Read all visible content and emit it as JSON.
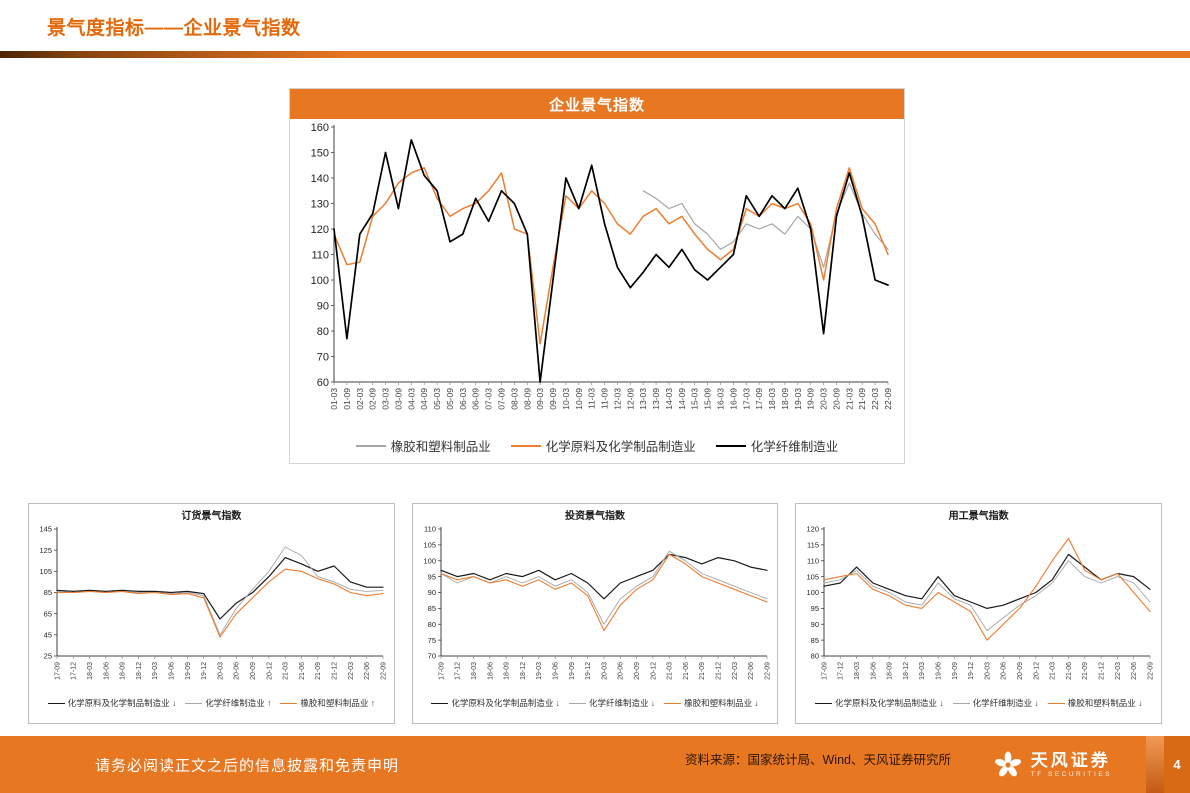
{
  "page": {
    "title": "景气度指标——企业景气指数",
    "footer": {
      "disclaimer": "请务必阅读正文之后的信息披露和免责申明",
      "source": "资料来源：国家统计局、Wind、天风证券研究所",
      "brand": "天风证券",
      "brand_sub": "TF SECURITIES",
      "page_number": "4"
    },
    "colors": {
      "accent": "#E87722",
      "series_black": "#000000",
      "series_orange": "#ED7D31",
      "series_gray": "#A6A6A6"
    }
  },
  "chart_data": [
    {
      "id": "main",
      "type": "line",
      "title": "企业景气指数",
      "ylim": [
        60,
        160
      ],
      "ytick_step": 10,
      "grid": false,
      "legend_position": "bottom",
      "x": [
        "01-03",
        "01-09",
        "02-03",
        "02-09",
        "03-03",
        "03-09",
        "04-03",
        "04-09",
        "05-03",
        "05-09",
        "06-03",
        "06-09",
        "07-03",
        "07-09",
        "08-03",
        "08-09",
        "09-03",
        "09-09",
        "10-03",
        "10-09",
        "11-03",
        "11-09",
        "12-03",
        "12-09",
        "13-03",
        "13-09",
        "14-03",
        "14-09",
        "15-03",
        "15-09",
        "16-03",
        "16-09",
        "17-03",
        "17-09",
        "18-03",
        "18-09",
        "19-03",
        "19-09",
        "20-03",
        "20-09",
        "21-03",
        "21-09",
        "22-03",
        "22-09"
      ],
      "series": [
        {
          "name": "橡胶和塑料制品业",
          "legend": "橡胶和塑料制品业",
          "color": "#A6A6A6",
          "values": [
            null,
            null,
            null,
            null,
            null,
            null,
            null,
            null,
            null,
            null,
            null,
            null,
            null,
            null,
            null,
            null,
            null,
            null,
            null,
            null,
            null,
            null,
            null,
            null,
            135,
            132,
            128,
            130,
            122,
            118,
            112,
            115,
            122,
            120,
            122,
            118,
            125,
            120,
            105,
            126,
            138,
            126,
            118,
            112
          ]
        },
        {
          "name": "化学原料及化学制品制造业",
          "legend": "化学原料及化学制品制造业",
          "color": "#ED7D31",
          "values": [
            118,
            106,
            107,
            125,
            130,
            138,
            142,
            144,
            132,
            125,
            128,
            130,
            135,
            142,
            120,
            118,
            75,
            105,
            133,
            128,
            135,
            130,
            122,
            118,
            125,
            128,
            122,
            125,
            118,
            112,
            108,
            112,
            128,
            125,
            130,
            128,
            130,
            122,
            100,
            128,
            144,
            128,
            122,
            110
          ]
        },
        {
          "name": "化学纤维制造业",
          "legend": "化学纤维制造业",
          "color": "#000000",
          "values": [
            120,
            77,
            118,
            126,
            150,
            128,
            155,
            141,
            135,
            115,
            118,
            132,
            123,
            135,
            130,
            118,
            60,
            100,
            140,
            128,
            145,
            122,
            105,
            97,
            103,
            110,
            105,
            112,
            104,
            100,
            105,
            110,
            133,
            125,
            133,
            128,
            136,
            120,
            79,
            125,
            142,
            125,
            100,
            98
          ]
        }
      ]
    },
    {
      "id": "orders",
      "type": "line",
      "title": "订货景气指数",
      "ylim": [
        25,
        145
      ],
      "ytick_step": 20,
      "grid": false,
      "legend_position": "bottom",
      "x": [
        "17-09",
        "17-12",
        "18-03",
        "18-06",
        "18-09",
        "18-12",
        "19-03",
        "19-06",
        "19-09",
        "19-12",
        "20-03",
        "20-06",
        "20-09",
        "20-12",
        "21-03",
        "21-06",
        "21-09",
        "21-12",
        "22-03",
        "22-06",
        "22-09"
      ],
      "series": [
        {
          "name": "化学原料及化学制品制造业",
          "legend": "化学原料及化学制品制造业 ↓",
          "color": "#1a1a1a",
          "values": [
            87,
            86,
            87,
            86,
            87,
            86,
            86,
            85,
            86,
            84,
            60,
            75,
            85,
            100,
            118,
            112,
            105,
            110,
            95,
            90,
            90
          ]
        },
        {
          "name": "化学纤维制造业",
          "legend": "化学纤维制造业 ↑",
          "color": "#A6A6A6",
          "values": [
            86,
            85,
            86,
            85,
            86,
            85,
            85,
            84,
            85,
            82,
            45,
            70,
            88,
            105,
            128,
            120,
            100,
            95,
            88,
            86,
            87
          ]
        },
        {
          "name": "橡胶和塑料制品业",
          "legend": "橡胶和塑料制品业 ↑",
          "color": "#ED7D31",
          "values": [
            85,
            85,
            86,
            85,
            86,
            84,
            85,
            83,
            84,
            80,
            43,
            65,
            80,
            95,
            107,
            105,
            98,
            93,
            85,
            82,
            84
          ]
        }
      ]
    },
    {
      "id": "investment",
      "type": "line",
      "title": "投资景气指数",
      "ylim": [
        70,
        110
      ],
      "ytick_step": 5,
      "grid": false,
      "legend_position": "bottom",
      "x": [
        "17-09",
        "17-12",
        "18-03",
        "18-06",
        "18-09",
        "18-12",
        "19-03",
        "19-06",
        "19-09",
        "19-12",
        "20-03",
        "20-06",
        "20-09",
        "20-12",
        "21-03",
        "21-06",
        "21-09",
        "21-12",
        "22-03",
        "22-06",
        "22-09"
      ],
      "series": [
        {
          "name": "化学原料及化学制品制造业",
          "legend": "化学原料及化学制品制造业 ↓",
          "color": "#1a1a1a",
          "values": [
            97,
            95,
            96,
            94,
            96,
            95,
            97,
            94,
            96,
            93,
            88,
            93,
            95,
            97,
            102,
            101,
            99,
            101,
            100,
            98,
            97
          ]
        },
        {
          "name": "化学纤维制造业",
          "legend": "化学纤维制造业 ↓",
          "color": "#A6A6A6",
          "values": [
            96,
            93,
            95,
            93,
            95,
            93,
            95,
            92,
            94,
            90,
            80,
            88,
            92,
            95,
            103,
            100,
            96,
            94,
            92,
            90,
            88
          ]
        },
        {
          "name": "橡胶和塑料制品业",
          "legend": "橡胶和塑料制品业 ↓",
          "color": "#ED7D31",
          "values": [
            96,
            94,
            95,
            93,
            94,
            92,
            94,
            91,
            93,
            89,
            78,
            86,
            91,
            94,
            102,
            99,
            95,
            93,
            91,
            89,
            87
          ]
        }
      ]
    },
    {
      "id": "employment",
      "type": "line",
      "title": "用工景气指数",
      "ylim": [
        80,
        120
      ],
      "ytick_step": 5,
      "grid": false,
      "legend_position": "bottom",
      "x": [
        "17-09",
        "17-12",
        "18-03",
        "18-06",
        "18-09",
        "18-12",
        "19-03",
        "19-06",
        "19-09",
        "19-12",
        "20-03",
        "20-06",
        "20-09",
        "20-12",
        "21-03",
        "21-06",
        "21-09",
        "21-12",
        "22-03",
        "22-06",
        "22-09"
      ],
      "series": [
        {
          "name": "化学原料及化学制品制造业",
          "legend": "化学原料及化学制品制造业 ↓",
          "color": "#1a1a1a",
          "values": [
            102,
            103,
            108,
            103,
            101,
            99,
            98,
            105,
            99,
            97,
            95,
            96,
            98,
            100,
            104,
            112,
            108,
            104,
            106,
            105,
            101
          ]
        },
        {
          "name": "化学纤维制造业",
          "legend": "化学纤维制造业 ↓",
          "color": "#A6A6A6",
          "values": [
            103,
            104,
            107,
            102,
            100,
            97,
            96,
            103,
            98,
            96,
            88,
            92,
            96,
            99,
            103,
            110,
            105,
            103,
            105,
            103,
            97
          ]
        },
        {
          "name": "橡胶和塑料制品业",
          "legend": "橡胶和塑料制品业 ↓",
          "color": "#ED7D31",
          "values": [
            104,
            105,
            106,
            101,
            99,
            96,
            95,
            100,
            97,
            94,
            85,
            90,
            95,
            102,
            110,
            117,
            107,
            104,
            106,
            100,
            94
          ]
        }
      ]
    }
  ]
}
